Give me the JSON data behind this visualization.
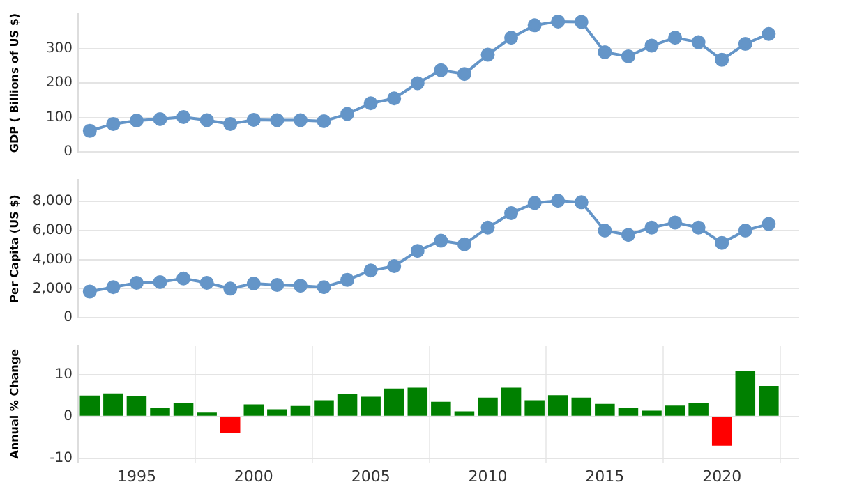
{
  "chart_data": [
    {
      "type": "line",
      "ylabel": "GDP ( Billions of US $)",
      "x": [
        1993,
        1994,
        1995,
        1996,
        1997,
        1998,
        1999,
        2000,
        2001,
        2002,
        2003,
        2004,
        2005,
        2006,
        2007,
        2008,
        2009,
        2010,
        2011,
        2012,
        2013,
        2014,
        2015,
        2016,
        2017,
        2018,
        2019,
        2020,
        2021,
        2022
      ],
      "series": [
        {
          "color": "#6495c8",
          "values": [
            61,
            81,
            91,
            95,
            101,
            92,
            81,
            93,
            92,
            92,
            89,
            110,
            141,
            155,
            199,
            237,
            226,
            282,
            331,
            367,
            378,
            377,
            289,
            277,
            308,
            331,
            318,
            267,
            313,
            342
          ]
        }
      ],
      "xlim": [
        1992.5,
        2023.3
      ],
      "ylim": [
        0,
        400
      ],
      "yticks": [
        0,
        100,
        200,
        300
      ],
      "grid": true,
      "marker": "circle",
      "tick_labels": "y"
    },
    {
      "type": "line",
      "ylabel": "Per Capita (US $)",
      "x": [
        1993,
        1994,
        1995,
        1996,
        1997,
        1998,
        1999,
        2000,
        2001,
        2002,
        2003,
        2004,
        2005,
        2006,
        2007,
        2008,
        2009,
        2010,
        2011,
        2012,
        2013,
        2014,
        2015,
        2016,
        2017,
        2018,
        2019,
        2020,
        2021,
        2022
      ],
      "series": [
        {
          "color": "#6495c8",
          "values": [
            1800,
            2100,
            2400,
            2450,
            2700,
            2400,
            2000,
            2350,
            2250,
            2200,
            2100,
            2600,
            3250,
            3550,
            4600,
            5300,
            5050,
            6200,
            7200,
            7900,
            8050,
            7950,
            6000,
            5700,
            6200,
            6550,
            6200,
            5150,
            6000,
            6450
          ]
        }
      ],
      "xlim": [
        1992.5,
        2023.3
      ],
      "ylim": [
        0,
        9500
      ],
      "yticks": [
        0,
        {
          "value": 2000,
          "label": "2,000"
        },
        {
          "value": 4000,
          "label": "4,000"
        },
        {
          "value": 6000,
          "label": "6,000"
        },
        {
          "value": 8000,
          "label": "8,000"
        }
      ],
      "grid": true,
      "marker": "circle",
      "tick_labels": "y"
    },
    {
      "type": "bar",
      "ylabel": "Annual % Change",
      "x": [
        1993,
        1994,
        1995,
        1996,
        1997,
        1998,
        1999,
        2000,
        2001,
        2002,
        2003,
        2004,
        2005,
        2006,
        2007,
        2008,
        2009,
        2010,
        2011,
        2012,
        2013,
        2014,
        2015,
        2016,
        2017,
        2018,
        2019,
        2020,
        2021,
        2022
      ],
      "values": [
        5.0,
        5.5,
        4.8,
        2.1,
        3.3,
        0.9,
        -3.9,
        2.9,
        1.7,
        2.5,
        3.9,
        5.3,
        4.7,
        6.7,
        6.9,
        3.5,
        1.2,
        4.5,
        6.9,
        3.9,
        5.1,
        4.5,
        3.0,
        2.1,
        1.4,
        2.6,
        3.2,
        -7.0,
        10.8,
        7.3
      ],
      "colors": [
        "#008000",
        "#008000",
        "#008000",
        "#008000",
        "#008000",
        "#008000",
        "#ff0000",
        "#008000",
        "#008000",
        "#008000",
        "#008000",
        "#008000",
        "#008000",
        "#008000",
        "#008000",
        "#008000",
        "#008000",
        "#008000",
        "#008000",
        "#008000",
        "#008000",
        "#008000",
        "#008000",
        "#008000",
        "#008000",
        "#008000",
        "#008000",
        "#ff0000",
        "#008000",
        "#008000"
      ],
      "xlim": [
        1992.5,
        2023.3
      ],
      "xticks": [
        1995,
        2000,
        2005,
        2010,
        2015,
        2020
      ],
      "ylim": [
        -11,
        17
      ],
      "yticks": [
        -10,
        0,
        10
      ],
      "grid": true
    }
  ]
}
